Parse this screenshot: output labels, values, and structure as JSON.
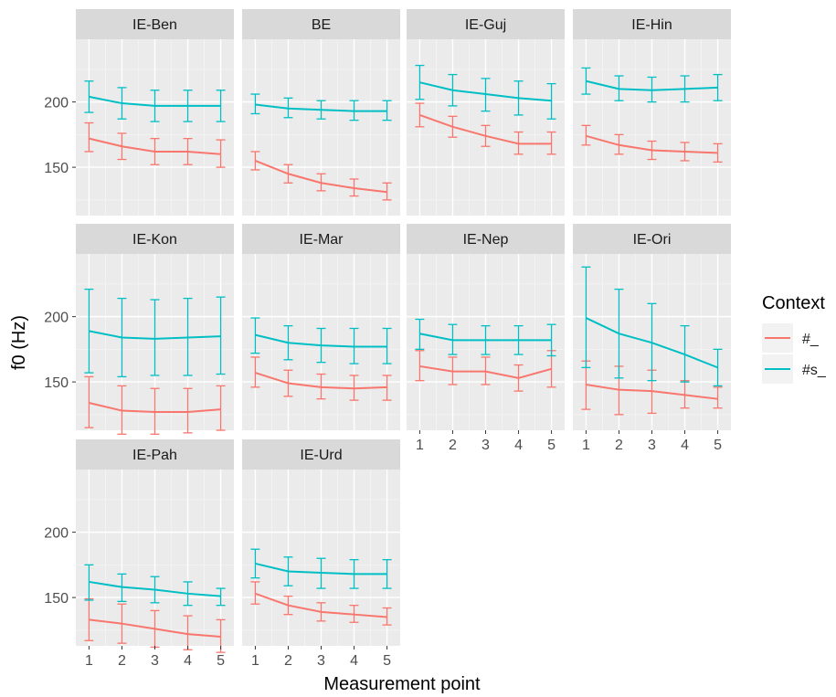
{
  "chart_data": {
    "type": "line",
    "ylabel": "f0 (Hz)",
    "xlabel": "Measurement point",
    "x": [
      1,
      2,
      3,
      4,
      5
    ],
    "x_ticks": [
      "1",
      "2",
      "3",
      "4",
      "5"
    ],
    "y_ticks": [
      150,
      200
    ],
    "ylim": [
      113,
      248
    ],
    "legend": {
      "title": "Context",
      "position": "right",
      "entries": [
        {
          "label": "#_",
          "color": "#F8766D"
        },
        {
          "label": "#s_",
          "color": "#00BFC4"
        }
      ]
    },
    "grid": true,
    "error_bars": true,
    "panels": [
      {
        "title": "IE-Ben",
        "series": [
          {
            "name": "#_",
            "values": [
              172,
              166,
              162,
              162,
              160
            ],
            "lower": [
              162,
              156,
              152,
              152,
              150
            ],
            "upper": [
              184,
              176,
              172,
              172,
              171
            ]
          },
          {
            "name": "#s_",
            "values": [
              204,
              199,
              197,
              197,
              197
            ],
            "lower": [
              192,
              187,
              185,
              185,
              185
            ],
            "upper": [
              216,
              211,
              209,
              209,
              209
            ]
          }
        ]
      },
      {
        "title": "BE",
        "series": [
          {
            "name": "#_",
            "values": [
              155,
              145,
              138,
              134,
              131
            ],
            "lower": [
              148,
              138,
              132,
              128,
              125
            ],
            "upper": [
              162,
              152,
              145,
              141,
              138
            ]
          },
          {
            "name": "#s_",
            "values": [
              198,
              195,
              194,
              193,
              193
            ],
            "lower": [
              191,
              188,
              187,
              186,
              186
            ],
            "upper": [
              206,
              203,
              201,
              201,
              201
            ]
          }
        ]
      },
      {
        "title": "IE-Guj",
        "series": [
          {
            "name": "#_",
            "values": [
              190,
              181,
              174,
              168,
              168
            ],
            "lower": [
              181,
              173,
              166,
              160,
              160
            ],
            "upper": [
              199,
              189,
              182,
              177,
              177
            ]
          },
          {
            "name": "#s_",
            "values": [
              215,
              209,
              206,
              203,
              201
            ],
            "lower": [
              202,
              197,
              193,
              190,
              187
            ],
            "upper": [
              228,
              221,
              218,
              216,
              214
            ]
          }
        ]
      },
      {
        "title": "IE-Hin",
        "series": [
          {
            "name": "#_",
            "values": [
              174,
              167,
              163,
              162,
              161
            ],
            "lower": [
              167,
              160,
              156,
              155,
              154
            ],
            "upper": [
              182,
              175,
              170,
              169,
              168
            ]
          },
          {
            "name": "#s_",
            "values": [
              216,
              210,
              209,
              210,
              211
            ],
            "lower": [
              206,
              201,
              200,
              200,
              201
            ],
            "upper": [
              226,
              220,
              219,
              220,
              221
            ]
          }
        ]
      },
      {
        "title": "IE-Kon",
        "series": [
          {
            "name": "#_",
            "values": [
              134,
              128,
              127,
              127,
              129
            ],
            "lower": [
              115,
              110,
              110,
              111,
              113
            ],
            "upper": [
              154,
              147,
              145,
              145,
              147
            ]
          },
          {
            "name": "#s_",
            "values": [
              189,
              184,
              183,
              184,
              185
            ],
            "lower": [
              157,
              154,
              155,
              155,
              156
            ],
            "upper": [
              221,
              214,
              213,
              214,
              215
            ]
          }
        ]
      },
      {
        "title": "IE-Mar",
        "series": [
          {
            "name": "#_",
            "values": [
              157,
              149,
              146,
              145,
              146
            ],
            "lower": [
              146,
              139,
              137,
              136,
              136
            ],
            "upper": [
              169,
              159,
              156,
              155,
              155
            ]
          },
          {
            "name": "#s_",
            "values": [
              186,
              180,
              178,
              177,
              177
            ],
            "lower": [
              172,
              167,
              165,
              164,
              164
            ],
            "upper": [
              199,
              193,
              191,
              191,
              191
            ]
          }
        ]
      },
      {
        "title": "IE-Nep",
        "series": [
          {
            "name": "#_",
            "values": [
              162,
              158,
              158,
              153,
              160
            ],
            "lower": [
              151,
              148,
              148,
              143,
              146
            ],
            "upper": [
              174,
              169,
              169,
              163,
              174
            ]
          },
          {
            "name": "#s_",
            "values": [
              187,
              182,
              182,
              182,
              182
            ],
            "lower": [
              175,
              171,
              171,
              171,
              170
            ],
            "upper": [
              198,
              194,
              193,
              193,
              194
            ]
          }
        ]
      },
      {
        "title": "IE-Ori",
        "series": [
          {
            "name": "#_",
            "values": [
              148,
              144,
              143,
              140,
              137
            ],
            "lower": [
              129,
              125,
              126,
              130,
              130
            ],
            "upper": [
              166,
              162,
              159,
              151,
              146
            ]
          },
          {
            "name": "#s_",
            "values": [
              199,
              187,
              180,
              171,
              161
            ],
            "lower": [
              161,
              153,
              151,
              150,
              147
            ],
            "upper": [
              238,
              221,
              210,
              193,
              175
            ]
          }
        ]
      },
      {
        "title": "IE-Pah",
        "series": [
          {
            "name": "#_",
            "values": [
              133,
              130,
              126,
              122,
              120
            ],
            "lower": [
              117,
              115,
              112,
              110,
              108
            ],
            "upper": [
              149,
              145,
              140,
              136,
              133
            ]
          },
          {
            "name": "#s_",
            "values": [
              162,
              158,
              156,
              153,
              151
            ],
            "lower": [
              148,
              147,
              146,
              144,
              144
            ],
            "upper": [
              175,
              168,
              166,
              162,
              157
            ]
          }
        ]
      },
      {
        "title": "IE-Urd",
        "series": [
          {
            "name": "#_",
            "values": [
              153,
              144,
              139,
              137,
              135
            ],
            "lower": [
              145,
              137,
              132,
              131,
              129
            ],
            "upper": [
              162,
              151,
              146,
              144,
              142
            ]
          },
          {
            "name": "#s_",
            "values": [
              176,
              170,
              169,
              168,
              168
            ],
            "lower": [
              165,
              159,
              157,
              157,
              157
            ],
            "upper": [
              187,
              181,
              180,
              179,
              179
            ]
          }
        ]
      }
    ]
  }
}
